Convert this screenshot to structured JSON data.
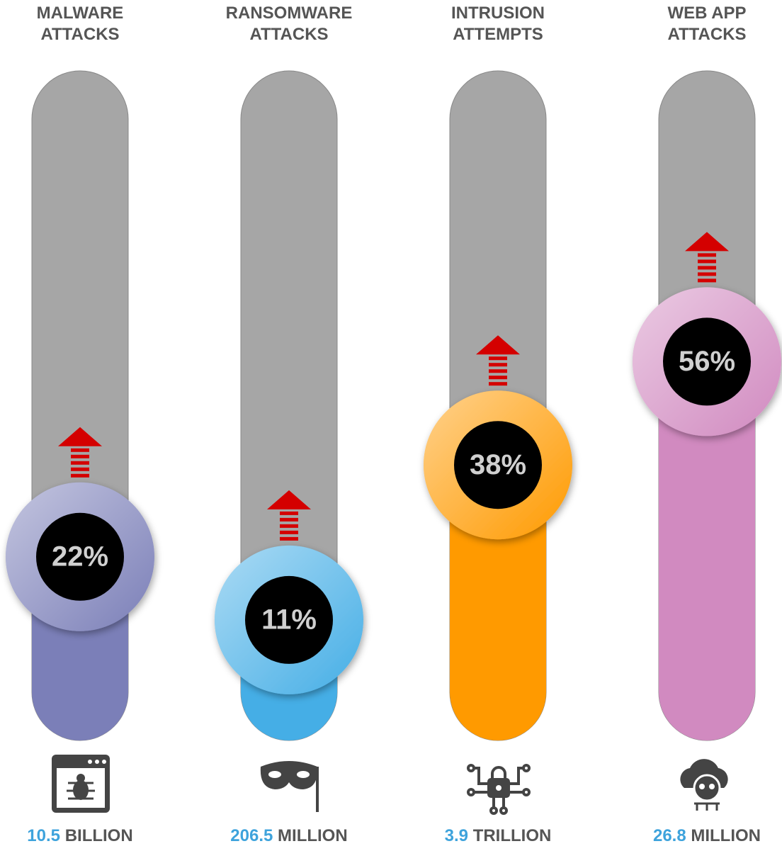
{
  "chart_data": {
    "type": "progress",
    "categories": [
      "MALWARE ATTACKS",
      "RANSOMWARE ATTACKS",
      "INTRUSION ATTEMPTS",
      "WEB APP ATTACKS"
    ],
    "values": [
      22,
      11,
      38,
      56
    ],
    "value_labels": [
      "22%",
      "11%",
      "38%",
      "56%"
    ],
    "colors": [
      "#7b7fb8",
      "#45aee6",
      "#ff9a00",
      "#d18ac0"
    ],
    "ylim": [
      0,
      100
    ],
    "amounts": [
      {
        "number": "10.5",
        "unit": "BILLION"
      },
      {
        "number": "206.5",
        "unit": "MILLION"
      },
      {
        "number": "3.9",
        "unit": "TRILLION"
      },
      {
        "number": "26.8",
        "unit": "MILLION"
      }
    ]
  }
}
